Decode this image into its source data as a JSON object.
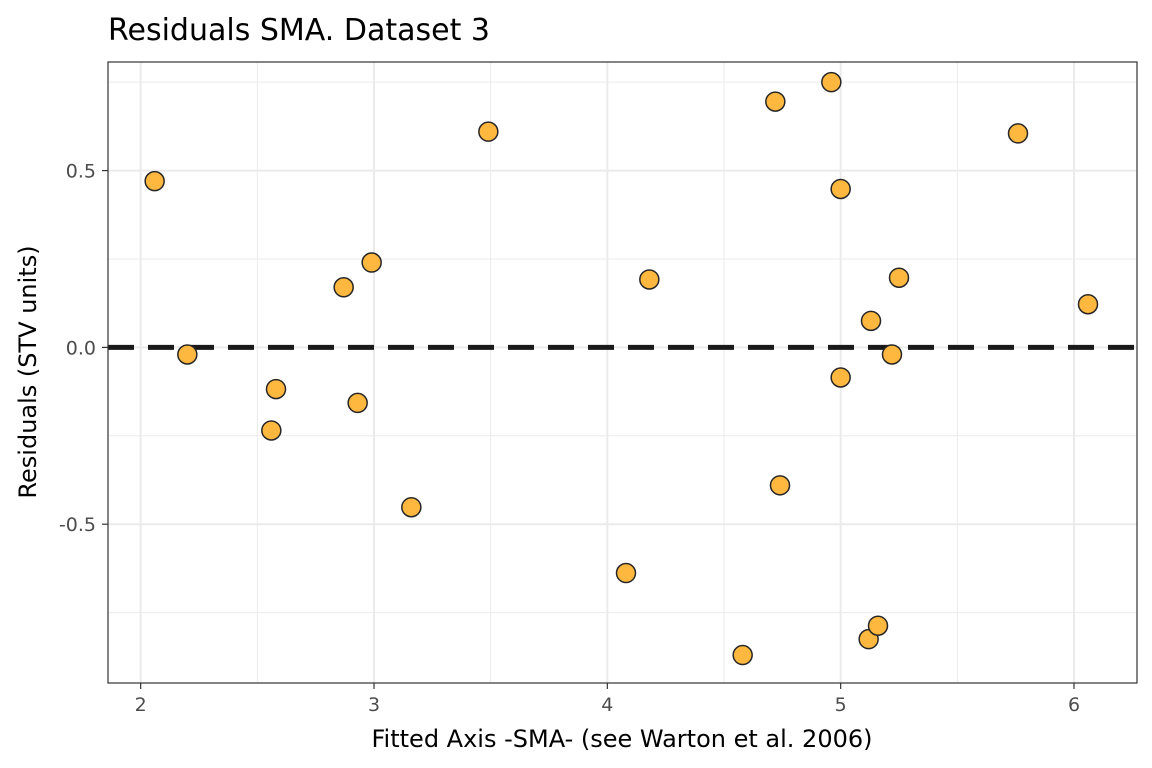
{
  "chart_data": {
    "type": "scatter",
    "title": "Residuals SMA. Dataset 3",
    "xlabel": "Fitted Axis -SMA- (see Warton et al. 2006)",
    "ylabel": "Residuals (STV units)",
    "xlim": [
      1.86,
      6.27
    ],
    "ylim": [
      -0.949,
      0.807
    ],
    "x_ticks": [
      2,
      3,
      4,
      5,
      6
    ],
    "x_tick_labels": [
      "2",
      "3",
      "4",
      "5",
      "6"
    ],
    "y_ticks": [
      -0.5,
      0.0,
      0.5
    ],
    "y_tick_labels": [
      "-0.5",
      "0.0",
      "0.5"
    ],
    "grid": true,
    "reference_line": {
      "y": 0.0,
      "style": "dashed",
      "color": "#1a1a1a"
    },
    "point_fill": "#FFB83F",
    "point_stroke": "#262626",
    "points": [
      {
        "x": 2.06,
        "y": 0.47
      },
      {
        "x": 2.2,
        "y": -0.02
      },
      {
        "x": 2.56,
        "y": -0.235
      },
      {
        "x": 2.58,
        "y": -0.118
      },
      {
        "x": 2.87,
        "y": 0.17
      },
      {
        "x": 2.93,
        "y": -0.157
      },
      {
        "x": 2.99,
        "y": 0.24
      },
      {
        "x": 3.16,
        "y": -0.452
      },
      {
        "x": 3.49,
        "y": 0.61
      },
      {
        "x": 4.08,
        "y": -0.638
      },
      {
        "x": 4.18,
        "y": 0.192
      },
      {
        "x": 4.58,
        "y": -0.87
      },
      {
        "x": 4.72,
        "y": 0.695
      },
      {
        "x": 4.74,
        "y": -0.39
      },
      {
        "x": 4.96,
        "y": 0.75
      },
      {
        "x": 5.0,
        "y": 0.448
      },
      {
        "x": 5.0,
        "y": -0.085
      },
      {
        "x": 5.12,
        "y": -0.825
      },
      {
        "x": 5.13,
        "y": 0.075
      },
      {
        "x": 5.16,
        "y": -0.787
      },
      {
        "x": 5.22,
        "y": -0.02
      },
      {
        "x": 5.25,
        "y": 0.197
      },
      {
        "x": 5.76,
        "y": 0.605
      },
      {
        "x": 6.06,
        "y": 0.122
      }
    ]
  }
}
